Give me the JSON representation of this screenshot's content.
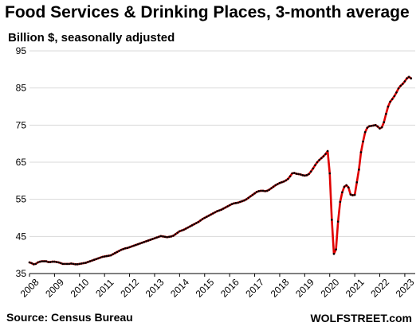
{
  "title": "Food Services & Drinking Places, 3-month average",
  "subtitle": "Billion $, seasonally adjusted",
  "source": "Source: Census Bureau",
  "credit": "WOLFSTREET.com",
  "colors": {
    "line": "#e00000",
    "markers": "#000000",
    "grid": "#d9d9d9"
  },
  "chart_data": {
    "type": "line",
    "title": "Food Services & Drinking Places, 3-month average",
    "ylabel": "Billion $, seasonally adjusted",
    "xlabel": "",
    "ylim": [
      35,
      95
    ],
    "yticks": [
      35,
      45,
      55,
      65,
      75,
      85,
      95
    ],
    "xlim": [
      "2008-01",
      "2023-06"
    ],
    "xticks": [
      "2008",
      "2009",
      "2010",
      "2011",
      "2012",
      "2013",
      "2014",
      "2015",
      "2016",
      "2017",
      "2018",
      "2019",
      "2020",
      "2021",
      "2022",
      "2023"
    ],
    "grid": "horizontal",
    "frequency": "monthly",
    "start": "2008-01",
    "series": [
      {
        "values": [
          38.0,
          37.8,
          37.5,
          37.6,
          38.0,
          38.2,
          38.3,
          38.3,
          38.3,
          38.1,
          38.1,
          38.2,
          38.2,
          38.1,
          38.0,
          37.8,
          37.6,
          37.6,
          37.6,
          37.6,
          37.7,
          37.6,
          37.5,
          37.5,
          37.6,
          37.7,
          37.8,
          37.9,
          38.1,
          38.3,
          38.5,
          38.7,
          38.9,
          39.1,
          39.3,
          39.5,
          39.6,
          39.7,
          39.8,
          39.9,
          40.2,
          40.5,
          40.8,
          41.1,
          41.4,
          41.6,
          41.8,
          41.9,
          42.1,
          42.3,
          42.5,
          42.7,
          42.9,
          43.1,
          43.3,
          43.5,
          43.7,
          43.9,
          44.1,
          44.3,
          44.5,
          44.7,
          44.9,
          45.1,
          45.0,
          44.9,
          44.8,
          44.9,
          45.0,
          45.2,
          45.6,
          46.0,
          46.4,
          46.6,
          46.8,
          47.1,
          47.4,
          47.7,
          48.0,
          48.3,
          48.6,
          48.9,
          49.3,
          49.7,
          50.0,
          50.3,
          50.6,
          50.9,
          51.2,
          51.5,
          51.8,
          52.0,
          52.2,
          52.5,
          52.8,
          53.1,
          53.4,
          53.7,
          53.9,
          54.0,
          54.1,
          54.3,
          54.5,
          54.7,
          55.0,
          55.4,
          55.8,
          56.2,
          56.6,
          57.0,
          57.2,
          57.3,
          57.3,
          57.2,
          57.3,
          57.6,
          58.0,
          58.4,
          58.8,
          59.1,
          59.4,
          59.6,
          59.8,
          60.1,
          60.5,
          61.2,
          62.0,
          62.1,
          61.9,
          61.8,
          61.7,
          61.5,
          61.4,
          61.5,
          61.8,
          62.5,
          63.3,
          64.2,
          65.0,
          65.6,
          66.1,
          66.6,
          67.2,
          68.0,
          62.0,
          49.5,
          40.3,
          41.5,
          49.0,
          54.3,
          56.9,
          58.4,
          58.8,
          58.2,
          56.3,
          56.1,
          56.2,
          59.6,
          63.0,
          67.7,
          70.6,
          73.1,
          74.3,
          74.7,
          74.8,
          74.9,
          75.0,
          74.6,
          74.1,
          74.4,
          75.8,
          78.0,
          80.0,
          81.3,
          82.0,
          82.8,
          83.8,
          84.9,
          85.6,
          86.1,
          86.8,
          87.6,
          88.0,
          87.6
        ]
      }
    ]
  }
}
